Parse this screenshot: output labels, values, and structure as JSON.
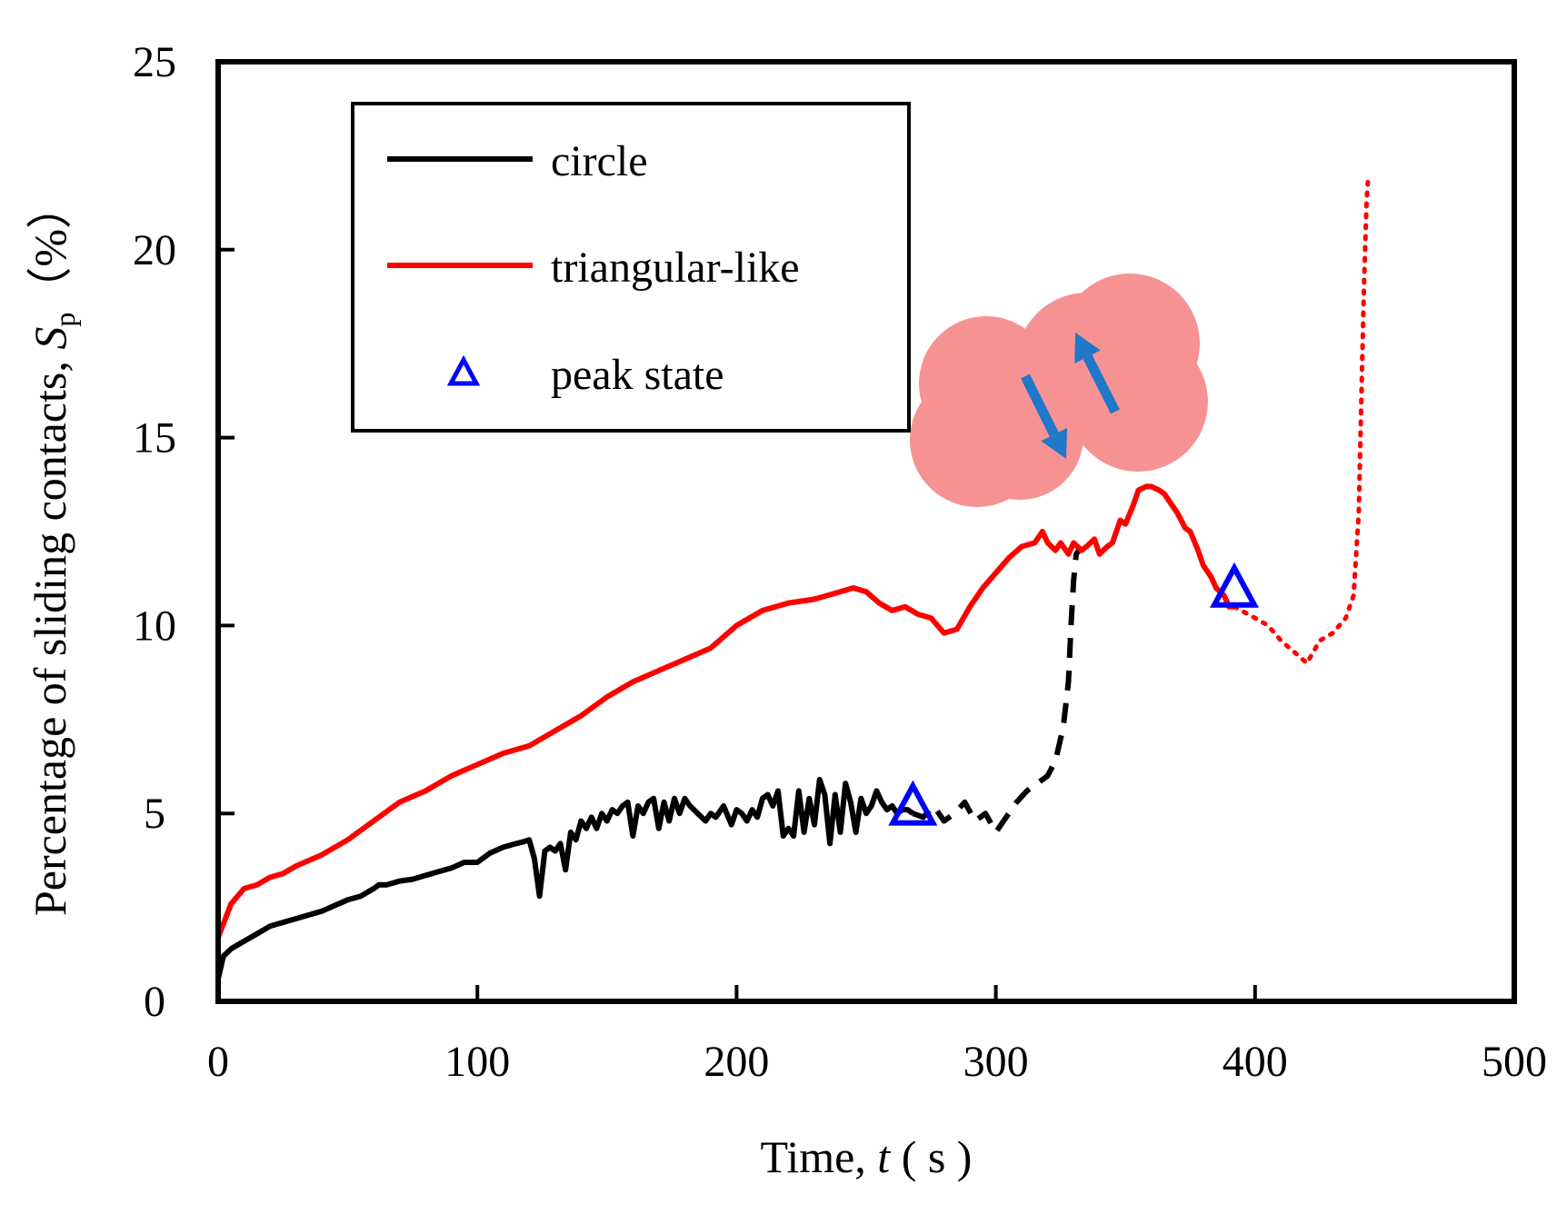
{
  "chart_data": {
    "type": "line",
    "title": "",
    "xlabel": "Time, t ( s )",
    "xlabel_parts": {
      "prefix": "Time, ",
      "var": "t",
      "suffix": " ( s )"
    },
    "ylabel": "Percentage of sliding contacts, Sp (%)",
    "ylabel_parts": {
      "prefix": "Percentage of sliding contacts, ",
      "var": "S",
      "sub": "p",
      "suffix": "（%）"
    },
    "xlim": [
      0,
      500
    ],
    "ylim": [
      0,
      25
    ],
    "xticks": [
      0,
      100,
      200,
      300,
      400,
      500
    ],
    "yticks": [
      0,
      5,
      10,
      15,
      20,
      25
    ],
    "grid": false,
    "legend_position": "top-left",
    "legend": [
      {
        "label": "circle",
        "color": "#000000",
        "marker": "line"
      },
      {
        "label": "triangular-like",
        "color": "#ff0000",
        "marker": "line"
      },
      {
        "label": "peak state",
        "color": "#0000ff",
        "marker": "triangle"
      }
    ],
    "series": [
      {
        "name": "circle",
        "color": "#000000",
        "style": "solid",
        "x": [
          0,
          2,
          5,
          10,
          15,
          20,
          25,
          30,
          35,
          40,
          45,
          50,
          55,
          60,
          62,
          65,
          70,
          75,
          80,
          85,
          90,
          95,
          100,
          105,
          110,
          115,
          118,
          120,
          122,
          124,
          126,
          128,
          130,
          132,
          134,
          136,
          138,
          140,
          142,
          144,
          146,
          148,
          150,
          152,
          154,
          156,
          158,
          160,
          162,
          164,
          166,
          168,
          170,
          172,
          174,
          176,
          178,
          180,
          182,
          185,
          188,
          190,
          192,
          195,
          198,
          200,
          202,
          204,
          206,
          208,
          210,
          212,
          214,
          216,
          218,
          220,
          222,
          224,
          226,
          228,
          230,
          232,
          234,
          236,
          238,
          240,
          242,
          244,
          246,
          248,
          250,
          252,
          254,
          256,
          258,
          260,
          262,
          264,
          266,
          268
        ],
        "y": [
          0.6,
          1.2,
          1.4,
          1.6,
          1.8,
          2.0,
          2.1,
          2.2,
          2.3,
          2.4,
          2.55,
          2.7,
          2.8,
          3.0,
          3.1,
          3.1,
          3.2,
          3.25,
          3.35,
          3.45,
          3.55,
          3.7,
          3.7,
          3.95,
          4.1,
          4.2,
          4.25,
          4.3,
          3.8,
          2.8,
          4.0,
          4.1,
          4.0,
          4.2,
          3.5,
          4.5,
          4.3,
          4.8,
          4.6,
          4.9,
          4.6,
          5.0,
          4.8,
          5.1,
          5.0,
          5.2,
          5.3,
          4.4,
          5.2,
          5.0,
          5.3,
          5.4,
          4.6,
          5.3,
          4.8,
          5.4,
          5.0,
          5.4,
          5.2,
          5.0,
          4.8,
          5.0,
          4.9,
          5.2,
          4.7,
          5.1,
          5.0,
          4.8,
          5.1,
          4.9,
          5.4,
          5.5,
          5.2,
          5.6,
          4.4,
          4.6,
          4.4,
          5.6,
          4.5,
          5.4,
          4.7,
          5.9,
          5.5,
          4.2,
          5.5,
          4.5,
          5.8,
          5.3,
          4.5,
          5.4,
          5.0,
          5.2,
          5.6,
          5.3,
          5.1,
          5.2,
          5.0,
          5.1,
          5.1,
          5.0
        ]
      },
      {
        "name": "circle",
        "color": "#000000",
        "style": "dashed",
        "x": [
          268,
          272,
          276,
          280,
          284,
          288,
          292,
          296,
          300,
          304,
          308,
          312,
          316,
          320,
          323,
          326,
          328,
          329,
          330,
          331,
          332
        ],
        "y": [
          5.0,
          4.9,
          5.2,
          4.8,
          5.0,
          5.3,
          4.8,
          5.0,
          4.5,
          4.9,
          5.3,
          5.6,
          5.8,
          6.0,
          6.4,
          7.3,
          8.5,
          10.0,
          11.2,
          11.9,
          12.0
        ]
      },
      {
        "name": "triangular-like",
        "color": "#ff0000",
        "style": "solid",
        "x": [
          0,
          5,
          10,
          15,
          20,
          25,
          30,
          40,
          50,
          60,
          70,
          80,
          90,
          100,
          110,
          120,
          130,
          140,
          150,
          160,
          170,
          180,
          190,
          200,
          210,
          220,
          230,
          240,
          245,
          250,
          255,
          260,
          265,
          270,
          275,
          280,
          285,
          290,
          295,
          300,
          305,
          310,
          315,
          318,
          320,
          323,
          325,
          328,
          330,
          333,
          335,
          338,
          340,
          343,
          345,
          348,
          350,
          353,
          355,
          358,
          360,
          363,
          365,
          368,
          370,
          373,
          375,
          378,
          380,
          383,
          385,
          388,
          390,
          392
        ],
        "y": [
          1.7,
          2.6,
          3.0,
          3.1,
          3.3,
          3.4,
          3.6,
          3.9,
          4.3,
          4.8,
          5.3,
          5.6,
          6.0,
          6.3,
          6.6,
          6.8,
          7.2,
          7.6,
          8.1,
          8.5,
          8.8,
          9.1,
          9.4,
          10.0,
          10.4,
          10.6,
          10.7,
          10.9,
          11.0,
          10.9,
          10.6,
          10.4,
          10.5,
          10.3,
          10.2,
          9.8,
          9.9,
          10.5,
          11.0,
          11.4,
          11.8,
          12.1,
          12.2,
          12.5,
          12.2,
          12.0,
          12.2,
          11.9,
          12.2,
          12.0,
          12.1,
          12.3,
          11.9,
          12.1,
          12.2,
          12.8,
          12.7,
          13.2,
          13.6,
          13.7,
          13.7,
          13.6,
          13.5,
          13.2,
          13.0,
          12.6,
          12.5,
          12.0,
          11.6,
          11.3,
          11.0,
          10.8,
          10.5,
          10.5
        ]
      },
      {
        "name": "triangular-like",
        "color": "#ff0000",
        "style": "dotted",
        "x": [
          392,
          400,
          405,
          410,
          415,
          420,
          425,
          430,
          435,
          438,
          440,
          441,
          442,
          443,
          443.5
        ],
        "y": [
          10.5,
          10.2,
          10.0,
          9.6,
          9.3,
          9.0,
          9.6,
          9.8,
          10.2,
          10.8,
          13.0,
          16.0,
          19.0,
          21.2,
          21.8
        ]
      }
    ],
    "peak_points": [
      {
        "series": "circle",
        "x": 268,
        "y": 5.2
      },
      {
        "series": "triangular-like",
        "x": 392,
        "y": 11.0
      }
    ],
    "inset": {
      "type": "particle-illustration",
      "particle_color": "#f79292",
      "arrow_color": "#1f78c8"
    }
  }
}
